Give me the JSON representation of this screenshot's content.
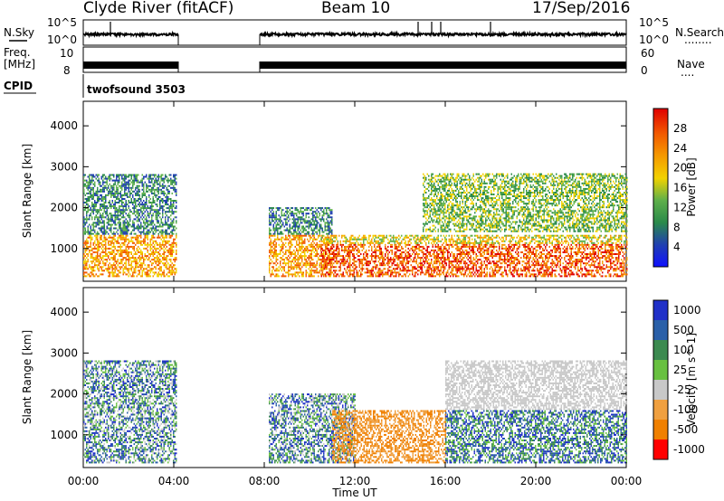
{
  "header": {
    "title_left": "Clyde River (fitACF)",
    "title_center": "Beam 10",
    "title_right": "17/Sep/2016"
  },
  "strip_labels": {
    "nsky": "N.Sky",
    "nsearch": "N.Search",
    "freq": "Freq.",
    "freq_unit": "[MHz]",
    "nave": "Nave",
    "cpid": "CPID",
    "cpid_value": "twofsound 3503",
    "dots_short": "....",
    "dots_long": "........"
  },
  "strip_ticks": {
    "noise_left_top": "10^5",
    "noise_left_bottom": "10^0",
    "noise_right_top": "10^5",
    "noise_right_bottom": "10^0",
    "freq_left_top": "10",
    "freq_left_bottom": "8",
    "nave_right_top": "60",
    "nave_right_bottom": "0"
  },
  "colors": {
    "power_scale": [
      "#1010ff",
      "#2040b0",
      "#2a8a4a",
      "#5fb04a",
      "#f2d200",
      "#f59a00",
      "#f25a00",
      "#e00000"
    ],
    "velocity_scale": [
      "#2030c8",
      "#2a60a8",
      "#3c8a50",
      "#68c040",
      "#c8c8c8",
      "#f0a040",
      "#f08000",
      "#ff0000"
    ]
  },
  "chart_data": [
    {
      "type": "heatmap",
      "name": "power",
      "ylabel": "Slant Range [km]",
      "xlabel": "",
      "xlim": [
        0,
        24
      ],
      "ylim": [
        200,
        4600
      ],
      "xticks": [
        "00:00",
        "04:00",
        "08:00",
        "12:00",
        "16:00",
        "20:00",
        "00:00"
      ],
      "yticks": [
        1000,
        2000,
        3000,
        4000
      ],
      "colorbar_label": "Power [dB]",
      "colorbar_ticks": [
        "4",
        "8",
        "12",
        "16",
        "20",
        "24",
        "28"
      ],
      "data_gap_hours": [
        4.2,
        7.8
      ],
      "echo_regions": [
        {
          "t0": 0.0,
          "t1": 4.1,
          "r0": 300,
          "r1": 2800,
          "level": "mixed"
        },
        {
          "t0": 8.2,
          "t1": 11.0,
          "r0": 300,
          "r1": 2000,
          "level": "mixed"
        },
        {
          "t0": 10.5,
          "t1": 24.0,
          "r0": 300,
          "r1": 1300,
          "level": "strong"
        },
        {
          "t0": 15.0,
          "t1": 24.0,
          "r0": 1400,
          "r1": 2800,
          "level": "moderate"
        }
      ]
    },
    {
      "type": "heatmap",
      "name": "velocity",
      "ylabel": "Slant Range [km]",
      "xlabel": "Time UT",
      "xlim": [
        0,
        24
      ],
      "ylim": [
        200,
        4600
      ],
      "xticks": [
        "00:00",
        "04:00",
        "08:00",
        "12:00",
        "16:00",
        "20:00",
        "00:00"
      ],
      "yticks": [
        1000,
        2000,
        3000,
        4000
      ],
      "colorbar_label": "Velocity [m s^-1]",
      "colorbar_ticks": [
        "1000",
        "500",
        "100",
        "25",
        "-25",
        "-100",
        "-500",
        "-1000"
      ],
      "data_gap_hours": [
        4.2,
        7.8
      ],
      "echo_regions": [
        {
          "t0": 0.0,
          "t1": 4.1,
          "r0": 300,
          "r1": 2800,
          "level": "mixed"
        },
        {
          "t0": 8.2,
          "t1": 12.0,
          "r0": 300,
          "r1": 2000,
          "level": "mixed"
        },
        {
          "t0": 11.0,
          "t1": 16.0,
          "r0": 300,
          "r1": 1600,
          "level": "away"
        },
        {
          "t0": 16.0,
          "t1": 24.0,
          "r0": 300,
          "r1": 2800,
          "level": "toward"
        }
      ]
    }
  ]
}
